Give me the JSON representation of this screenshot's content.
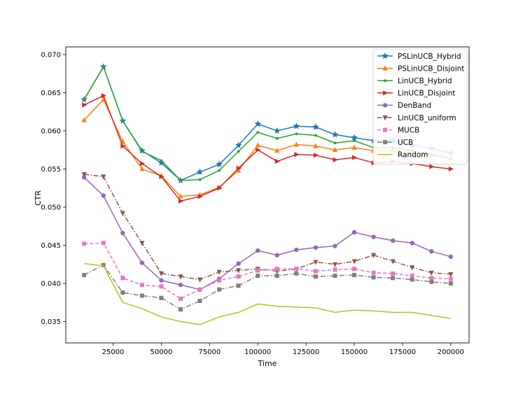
{
  "chart_data": {
    "type": "line",
    "title": "",
    "xlabel": "Time",
    "ylabel": "CTR",
    "xlim": [
      500,
      209500
    ],
    "ylim": [
      0.0322,
      0.071
    ],
    "xticks": [
      25000,
      50000,
      75000,
      100000,
      125000,
      150000,
      175000,
      200000
    ],
    "xtick_labels": [
      "25000",
      "50000",
      "75000",
      "100000",
      "125000",
      "150000",
      "175000",
      "200000"
    ],
    "yticks": [
      0.035,
      0.04,
      0.045,
      0.05,
      0.055,
      0.06,
      0.065,
      0.07
    ],
    "ytick_labels": [
      "0.035",
      "0.040",
      "0.045",
      "0.050",
      "0.055",
      "0.060",
      "0.065",
      "0.070"
    ],
    "grid": false,
    "legend_position": "top-right",
    "x": [
      10000,
      20000,
      30000,
      40000,
      50000,
      60000,
      70000,
      80000,
      90000,
      100000,
      110000,
      120000,
      130000,
      140000,
      150000,
      160000,
      170000,
      180000,
      190000,
      200000
    ],
    "series": [
      {
        "name": "PSLinUCB_Hybrid",
        "color": "#1f77b4",
        "marker": "star",
        "dash": "solid",
        "values": [
          0.0641,
          0.0684,
          0.0613,
          0.0574,
          0.0558,
          0.0535,
          0.0546,
          0.0556,
          0.0581,
          0.0609,
          0.06,
          0.0606,
          0.0605,
          0.0595,
          0.0591,
          0.0587,
          0.0587,
          0.0581,
          0.0577,
          0.0571
        ]
      },
      {
        "name": "PSLinUCB_Disjoint",
        "color": "#ff7f0e",
        "marker": "triangle-up",
        "dash": "solid",
        "values": [
          0.0614,
          0.0641,
          0.0586,
          0.055,
          0.0541,
          0.0514,
          0.0516,
          0.0526,
          0.0548,
          0.0581,
          0.0574,
          0.0582,
          0.058,
          0.0575,
          0.0578,
          0.0574,
          0.0574,
          0.0572,
          0.0568,
          0.0564
        ]
      },
      {
        "name": "LinUCB_Hybrid",
        "color": "#2ca02c",
        "marker": "point",
        "dash": "solid",
        "values": [
          0.0641,
          0.0684,
          0.0613,
          0.0573,
          0.0561,
          0.0535,
          0.0536,
          0.0548,
          0.0573,
          0.0598,
          0.059,
          0.0596,
          0.0594,
          0.0584,
          0.0587,
          0.0578,
          0.0578,
          0.0574,
          0.0569,
          0.0564
        ]
      },
      {
        "name": "LinUCB_Disjoint",
        "color": "#d62728",
        "marker": "triangle-right",
        "dash": "solid",
        "values": [
          0.0634,
          0.0646,
          0.058,
          0.0557,
          0.054,
          0.0508,
          0.0514,
          0.0525,
          0.0551,
          0.0575,
          0.056,
          0.0569,
          0.0568,
          0.0562,
          0.0565,
          0.0558,
          0.056,
          0.0557,
          0.0553,
          0.055
        ]
      },
      {
        "name": "DenBand",
        "color": "#9467bd",
        "marker": "circle",
        "dash": "solid",
        "values": [
          0.0539,
          0.0515,
          0.0466,
          0.0427,
          0.0404,
          0.0398,
          0.0392,
          0.0406,
          0.0426,
          0.0443,
          0.0437,
          0.0444,
          0.0447,
          0.0449,
          0.0467,
          0.0461,
          0.0456,
          0.0453,
          0.0442,
          0.0435
        ]
      },
      {
        "name": "LinUCB_uniform",
        "color": "#8c564b",
        "marker": "triangle-down",
        "dash": "dashdot",
        "values": [
          0.0543,
          0.054,
          0.0492,
          0.0453,
          0.0413,
          0.0409,
          0.0405,
          0.0415,
          0.0417,
          0.0419,
          0.0416,
          0.0419,
          0.0428,
          0.0425,
          0.0429,
          0.0437,
          0.0429,
          0.0421,
          0.0414,
          0.0412
        ]
      },
      {
        "name": "MUCB",
        "color": "#e377c2",
        "marker": "square",
        "dash": "dashed",
        "values": [
          0.0452,
          0.0453,
          0.0407,
          0.0398,
          0.0396,
          0.038,
          0.0392,
          0.0404,
          0.0409,
          0.0417,
          0.0419,
          0.0419,
          0.0416,
          0.0418,
          0.0419,
          0.0414,
          0.0413,
          0.041,
          0.0407,
          0.0406
        ]
      },
      {
        "name": "UCB",
        "color": "#7f7f7f",
        "marker": "square",
        "dash": "dashdot",
        "values": [
          0.0411,
          0.0424,
          0.0388,
          0.0384,
          0.0381,
          0.0366,
          0.0377,
          0.0392,
          0.0397,
          0.041,
          0.041,
          0.0413,
          0.0409,
          0.041,
          0.0411,
          0.0408,
          0.0407,
          0.0405,
          0.0402,
          0.04
        ]
      },
      {
        "name": "Random",
        "color": "#bcbd22",
        "marker": "none",
        "dash": "solid",
        "values": [
          0.0426,
          0.0423,
          0.0375,
          0.0367,
          0.0356,
          0.035,
          0.0346,
          0.0356,
          0.0362,
          0.0373,
          0.037,
          0.0369,
          0.0368,
          0.0362,
          0.0365,
          0.0364,
          0.0362,
          0.0362,
          0.0358,
          0.0354
        ]
      }
    ]
  }
}
